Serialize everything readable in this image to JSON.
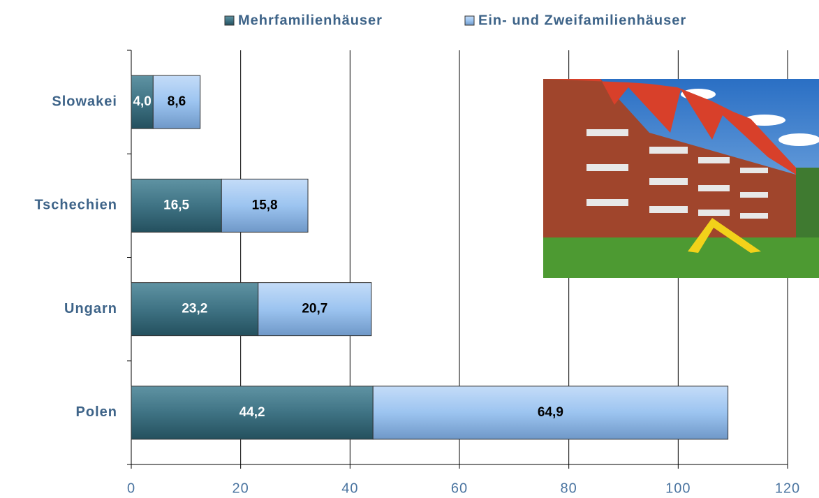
{
  "chart_data": {
    "type": "stacked_barh",
    "categories": [
      "Slowakei",
      "Tschechien",
      "Ungarn",
      "Polen"
    ],
    "series": [
      {
        "name": "Mehrfamilienhäuser",
        "color": "#3f7384",
        "values": [
          4.0,
          16.5,
          23.2,
          44.2
        ],
        "value_labels": [
          "4,0",
          "16,5",
          "23,2",
          "44,2"
        ]
      },
      {
        "name": "Ein- und Zweifamilienhäuser",
        "color": "#9cc4f0",
        "values": [
          8.6,
          15.8,
          20.7,
          64.9
        ],
        "value_labels": [
          "8,6",
          "15,8",
          "20,7",
          "64,9"
        ]
      }
    ],
    "xlim": [
      0,
      120
    ],
    "xticks": [
      0,
      20,
      40,
      60,
      80,
      100,
      120
    ],
    "grid": true
  }
}
